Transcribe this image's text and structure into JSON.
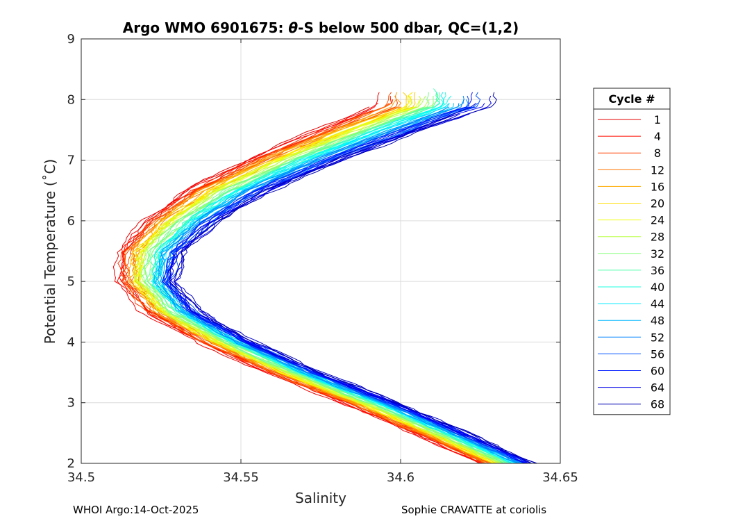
{
  "chart_data": {
    "type": "line",
    "title": "Argo WMO 6901675: θ-S below 500 dbar,  QC=(1,2)",
    "title_prefix": "Argo WMO 6901675: ",
    "title_theta": "θ",
    "title_suffix": "-S below 500 dbar,  QC=(1,2)",
    "xlabel": "Salinity",
    "ylabel": "Potential Temperature (˚C)",
    "xlim": [
      34.5,
      34.65
    ],
    "ylim": [
      2,
      9
    ],
    "grid": true,
    "xticks": [
      "34.5",
      "34.55",
      "34.6",
      "34.65"
    ],
    "yticks": [
      "2",
      "3",
      "4",
      "5",
      "6",
      "7",
      "8",
      "9"
    ],
    "legend": {
      "title": "Cycle #",
      "position": "right",
      "entries": [
        "1",
        "4",
        "8",
        "12",
        "16",
        "20",
        "24",
        "28",
        "32",
        "36",
        "40",
        "44",
        "48",
        "52",
        "56",
        "60",
        "64",
        "68"
      ]
    },
    "series_range": {
      "first_cycle": 1,
      "last_cycle": 68
    },
    "template_profile": {
      "theta": [
        2.0,
        2.5,
        3.0,
        3.5,
        4.0,
        4.5,
        5.0,
        5.5,
        6.0,
        6.5,
        7.0,
        7.5,
        7.9
      ],
      "salinity": [
        34.625,
        34.604,
        34.582,
        34.558,
        34.537,
        34.52,
        34.512,
        34.512,
        34.52,
        34.533,
        34.552,
        34.574,
        34.593
      ]
    }
  },
  "footer": {
    "left": "WHOI Argo:14-Oct-2025",
    "right": "Sophie CRAVATTE at coriolis"
  }
}
